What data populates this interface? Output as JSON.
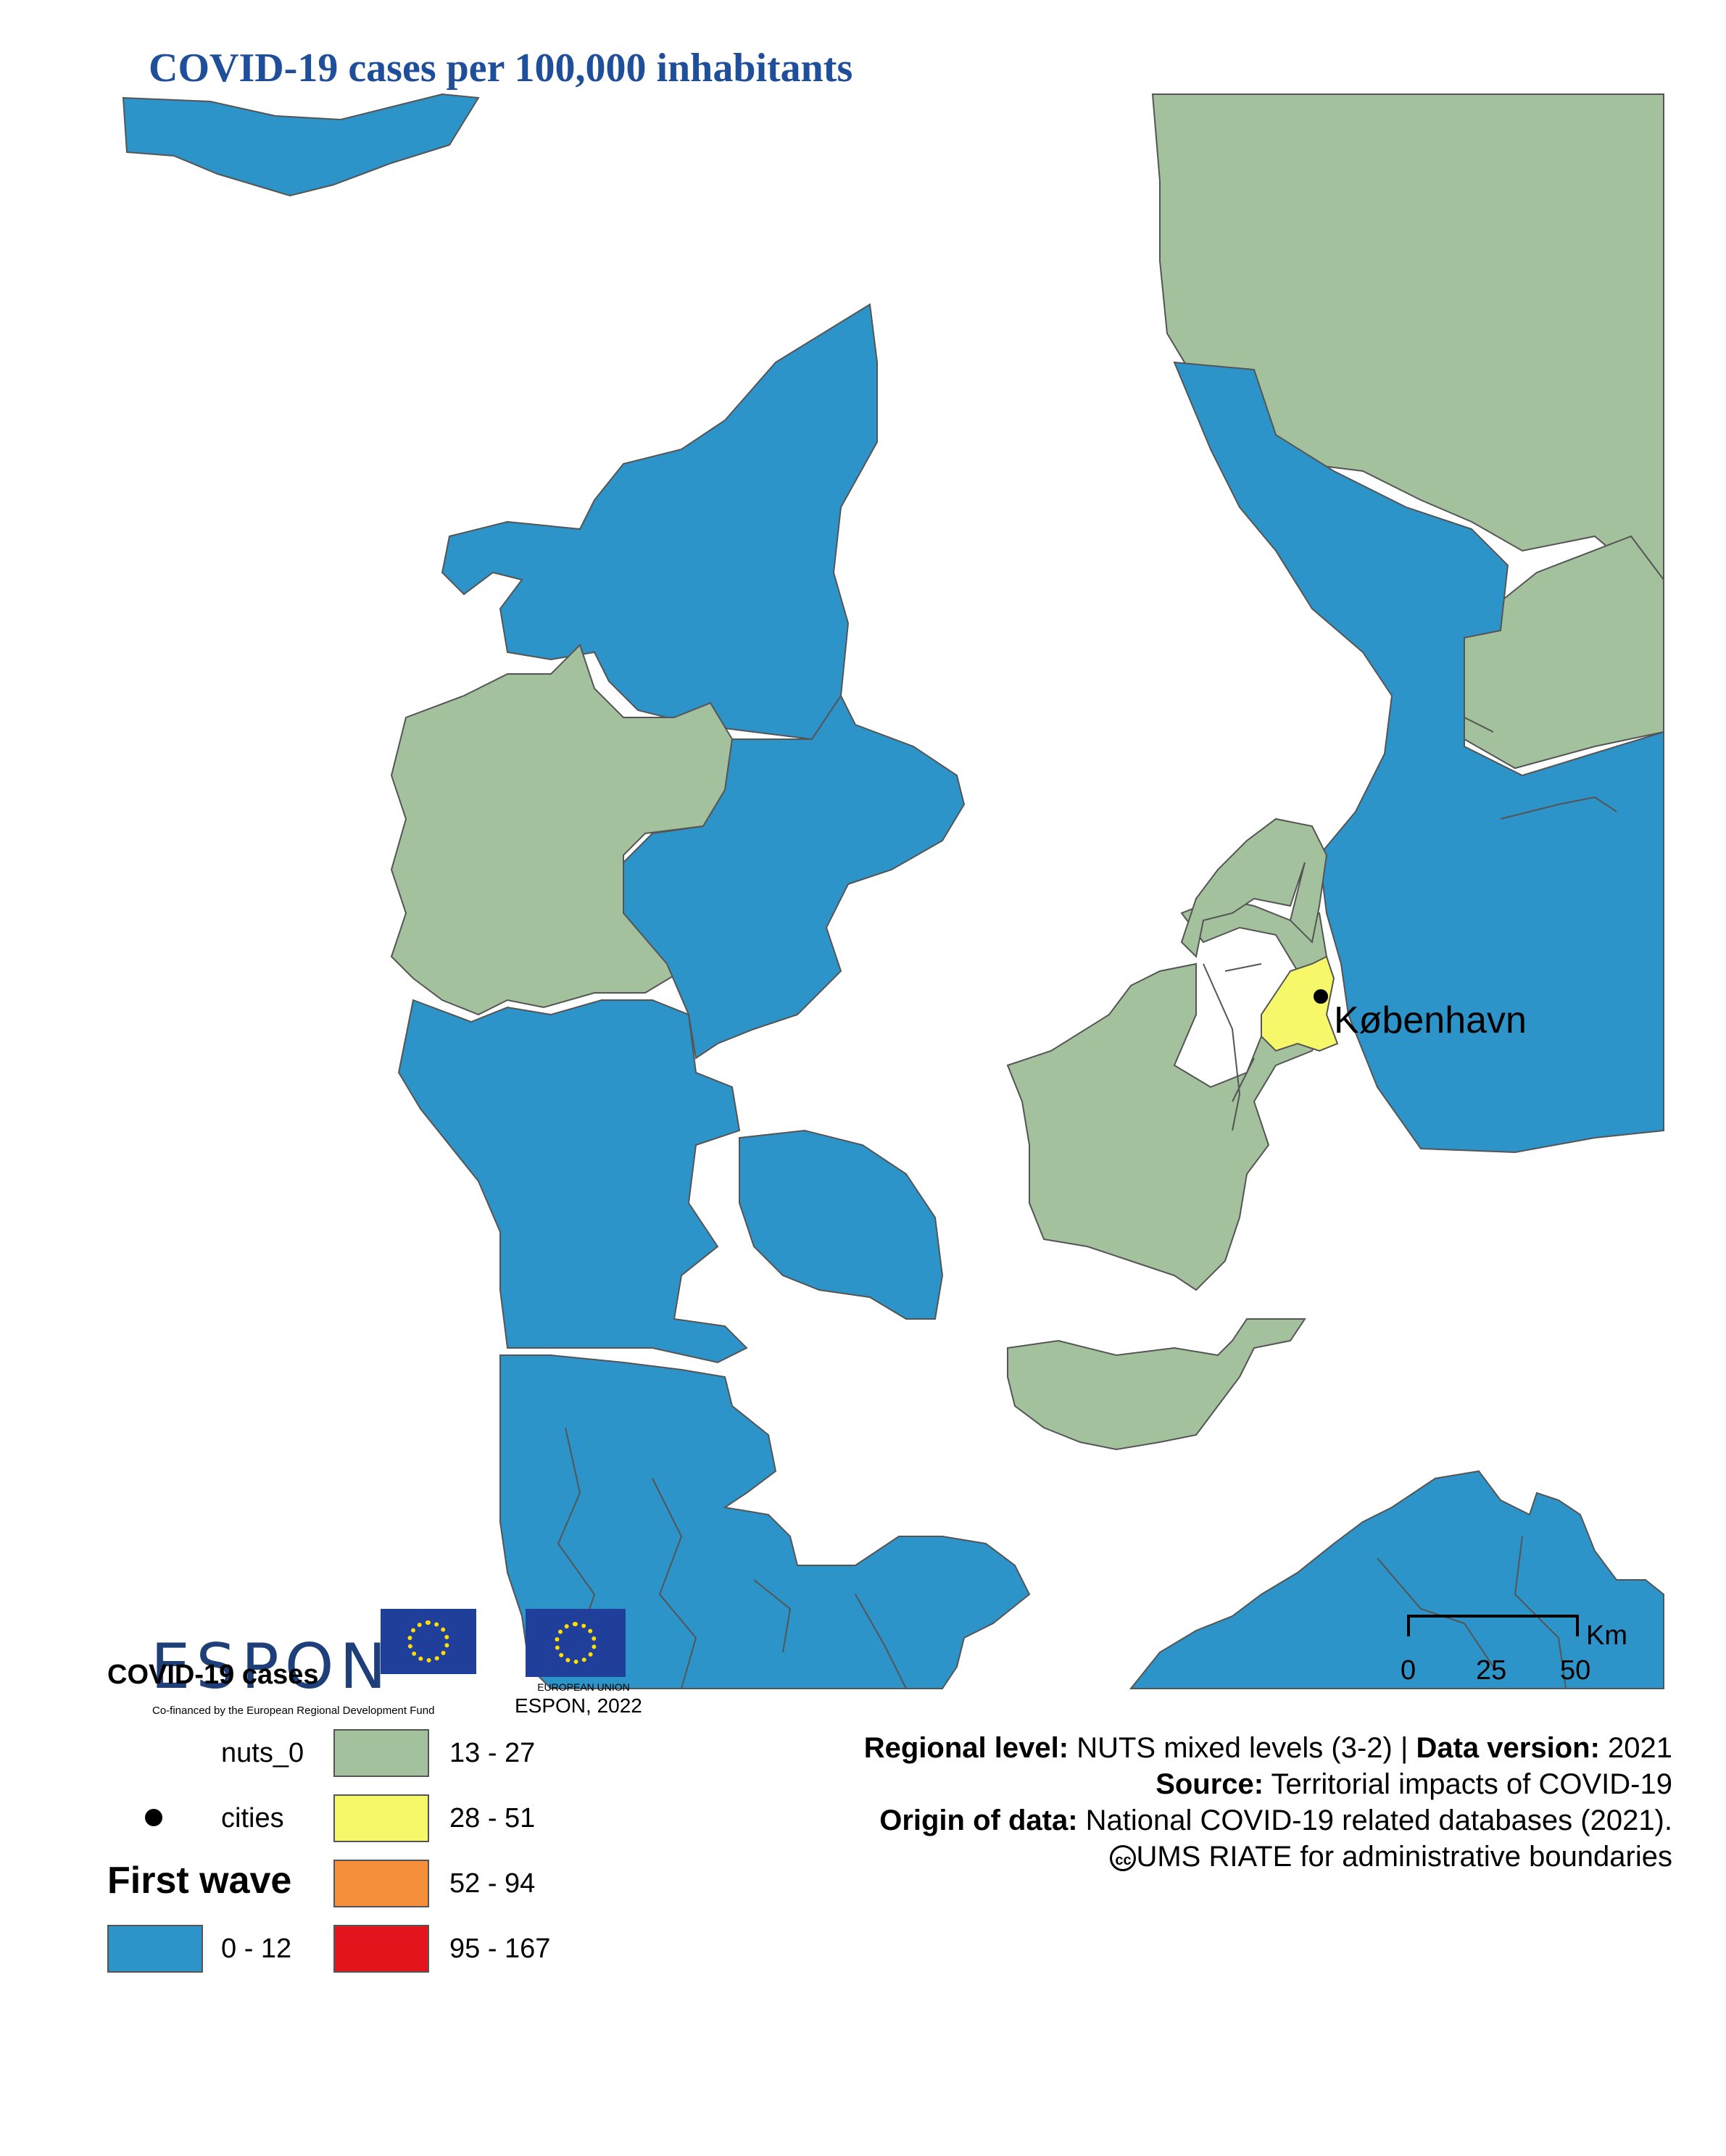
{
  "title": "COVID-19 cases per 100,000 inhabitants",
  "city": {
    "name": "København"
  },
  "colors": {
    "water": "#ffffff",
    "class_0_12": "#2c94c8",
    "class_13_27": "#a3c19c",
    "class_28_51": "#f7f76a",
    "class_52_94": "#f58f3b",
    "class_95_167": "#e3141b",
    "border": "#555555"
  },
  "logos": {
    "espon": "ESPON",
    "eu_label": "EUROPEAN UNION",
    "cofinanced": "Co-financed by the European Regional Development Fund"
  },
  "legend": {
    "title": "COVID-19 cases",
    "credit_year": "ESPON, 2022",
    "nuts_0": "nuts_0",
    "cities": "cities",
    "wave": "First wave",
    "classes": [
      "0 - 12",
      "13 - 27",
      "28 - 51",
      "52 - 94",
      "95 - 167"
    ]
  },
  "scale": {
    "unit": "Km",
    "ticks": [
      "0",
      "25",
      "50"
    ]
  },
  "meta": {
    "regional_level_label": "Regional level:",
    "regional_level_value": "NUTS mixed levels (3-2) |",
    "data_version_label": "Data version:",
    "data_version_value": "2021",
    "source_label": "Source:",
    "source_value": "Territorial impacts of COVID-19",
    "origin_label": "Origin of data:",
    "origin_value": "National COVID-19 related databases (2021).",
    "cc_symbol": "cc",
    "boundaries": "UMS RIATE for administrative boundaries"
  }
}
